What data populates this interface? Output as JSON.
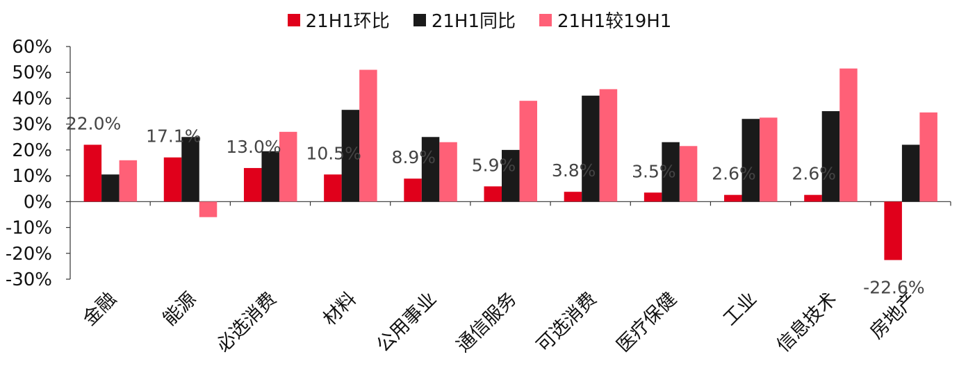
{
  "chart_data": {
    "type": "bar",
    "categories": [
      "金融",
      "能源",
      "必选消费",
      "材料",
      "公用事业",
      "通信服务",
      "可选消费",
      "医疗保健",
      "工业",
      "信息技术",
      "房地产"
    ],
    "series": [
      {
        "name": "21H1环比",
        "color": "#E0001B",
        "values": [
          22.0,
          17.1,
          13.0,
          10.5,
          8.9,
          5.9,
          3.8,
          3.5,
          2.6,
          2.6,
          -22.6
        ]
      },
      {
        "name": "21H1同比",
        "color": "#1A1A1A",
        "values": [
          10.5,
          25.0,
          19.5,
          35.5,
          25.0,
          20.0,
          41.0,
          23.0,
          32.0,
          35.0,
          22.0
        ]
      },
      {
        "name": "21H1较19H1",
        "color": "#FF6077",
        "values": [
          16.0,
          -6.0,
          27.0,
          51.0,
          23.0,
          39.0,
          43.5,
          21.5,
          32.5,
          51.5,
          34.5
        ]
      }
    ],
    "data_labels": [
      "22.0%",
      "17.1%",
      "13.0%",
      "10.5%",
      "8.9%",
      "5.9%",
      "3.8%",
      "3.5%",
      "2.6%",
      "2.6%",
      "-22.6%"
    ],
    "y_ticks": [
      "60%",
      "50%",
      "40%",
      "30%",
      "20%",
      "10%",
      "0%",
      "-10%",
      "-20%",
      "-30%"
    ],
    "ylim": [
      -30,
      60
    ],
    "legend_position": "top-center",
    "grid": false
  }
}
